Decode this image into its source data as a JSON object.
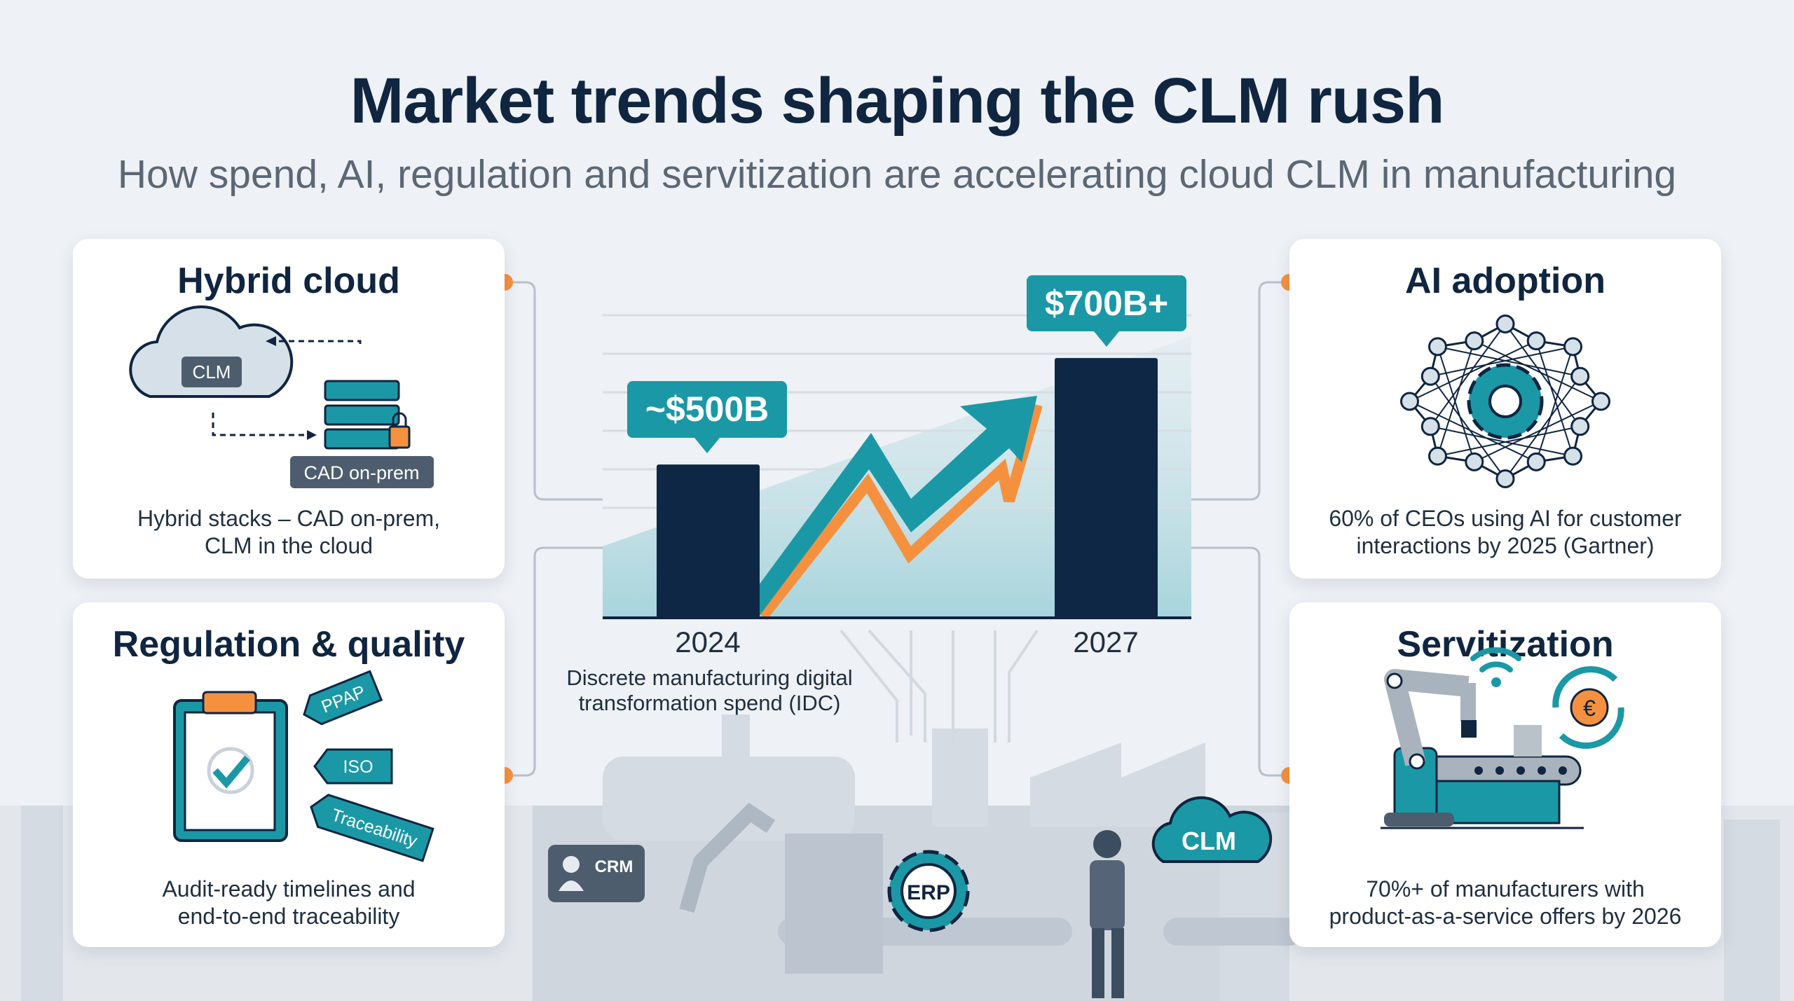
{
  "header": {
    "title": "Market trends shaping the CLM rush",
    "subtitle": "How spend, AI, regulation and servitization are accelerating cloud CLM in manufacturing"
  },
  "cards": {
    "hybrid": {
      "title": "Hybrid cloud",
      "cloud_label": "CLM",
      "server_label": "CAD on-prem",
      "text1": "Hybrid stacks – CAD on-prem,",
      "text2": "CLM in the cloud"
    },
    "regulation": {
      "title": "Regulation & quality",
      "tags": [
        "PPAP",
        "ISO",
        "Traceability"
      ],
      "text1": "Audit-ready timelines and",
      "text2": "end-to-end traceability"
    },
    "ai": {
      "title": "AI adoption",
      "text1": "60% of CEOs using AI for customer",
      "text2": "interactions by 2025 (Gartner)"
    },
    "servitization": {
      "title": "Servitization",
      "currency_symbol": "€",
      "text1": "70%+ of manufacturers with",
      "text2": "product-as-a-service offers by 2026"
    }
  },
  "background": {
    "crm": "CRM",
    "erp": "ERP",
    "clm": "CLM"
  },
  "colors": {
    "navy": "#0f2540",
    "teal": "#1b98a6",
    "orange": "#f5913e",
    "bar": "#0d2744"
  },
  "chart_data": {
    "type": "bar",
    "categories": [
      "2024",
      "2027"
    ],
    "values": [
      500,
      700
    ],
    "data_labels": [
      "~$500B",
      "$700B+"
    ],
    "caption_line1": "Discrete manufacturing digital",
    "caption_line2": "transformation spend (IDC)",
    "grid": true,
    "trend_arrow": "up"
  }
}
